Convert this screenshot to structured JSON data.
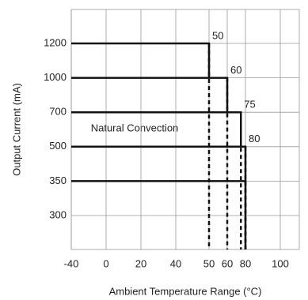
{
  "chart_data": {
    "type": "derating",
    "x_label": "Ambient Temperature Range (°C)",
    "y_label": "Output Current (mA)",
    "annotation": "Natural Convection",
    "categories": [
      "1200",
      "1000",
      "700",
      "500",
      "350",
      "300"
    ],
    "values": [
      50,
      60,
      75,
      80,
      80,
      null
    ],
    "value_labels": [
      "50",
      "60",
      "75",
      "80",
      null,
      null
    ],
    "color": "#111111",
    "xlim": [
      -40,
      100
    ],
    "xticks": [
      -40,
      0,
      20,
      40,
      50,
      60,
      80,
      100
    ],
    "grid": true
  }
}
